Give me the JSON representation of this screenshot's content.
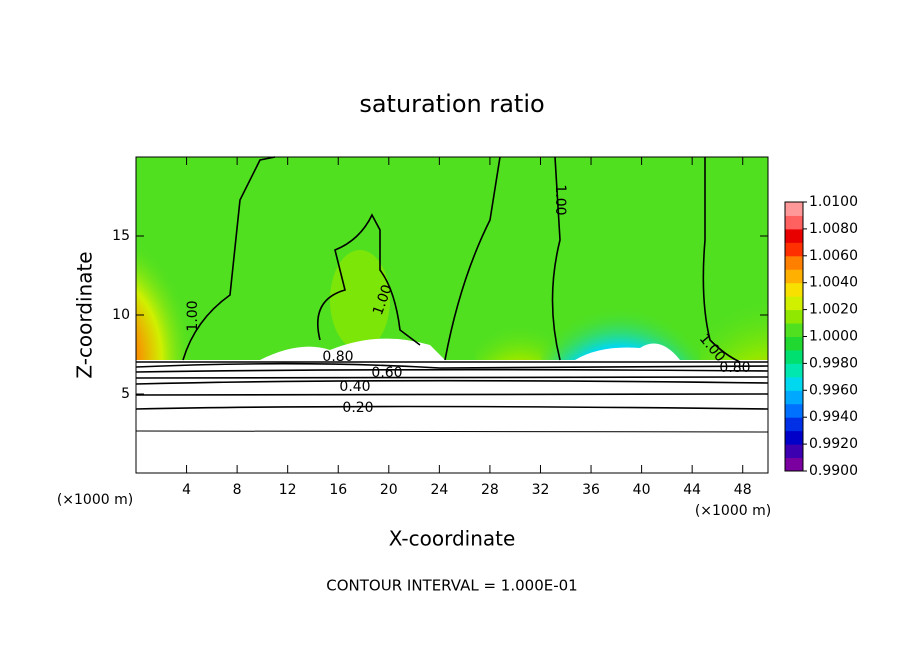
{
  "chart_data": {
    "type": "contour",
    "title": "saturation ratio",
    "x_label": "X-coordinate",
    "y_label": "Z-coordinate",
    "x_unit_left": "(×1000 m)",
    "x_unit_right": "(×1000 m)",
    "footnote": "CONTOUR INTERVAL = 1.000E-01",
    "xlim": [
      0,
      50
    ],
    "xticks": [
      4,
      8,
      12,
      16,
      20,
      24,
      28,
      32,
      36,
      40,
      44,
      48
    ],
    "ylim": [
      0,
      20
    ],
    "yticks": [
      5,
      10,
      15
    ],
    "contour_labels": [
      "1.00",
      "1.00",
      "1.00",
      "1.00",
      "0.80",
      "0.80",
      "0.60",
      "0.40",
      "0.20"
    ],
    "colorbar": {
      "lim": [
        0.99,
        1.01
      ],
      "ticks": [
        {
          "value": 0.99,
          "label": "0.9900"
        },
        {
          "value": 0.992,
          "label": "0.9920"
        },
        {
          "value": 0.994,
          "label": "0.9940"
        },
        {
          "value": 0.996,
          "label": "0.9960"
        },
        {
          "value": 0.998,
          "label": "0.9980"
        },
        {
          "value": 1.0,
          "label": "1.0000"
        },
        {
          "value": 1.002,
          "label": "1.0020"
        },
        {
          "value": 1.004,
          "label": "1.0040"
        },
        {
          "value": 1.006,
          "label": "1.0060"
        },
        {
          "value": 1.008,
          "label": "1.0080"
        },
        {
          "value": 1.01,
          "label": "1.0100"
        }
      ],
      "colors": [
        "#7a00a0",
        "#3c00b0",
        "#0000c8",
        "#0030e6",
        "#0070ff",
        "#00a8ff",
        "#00d8f0",
        "#00e8b0",
        "#00e070",
        "#20d830",
        "#50e020",
        "#90e800",
        "#d0f000",
        "#f8e000",
        "#ffb000",
        "#ff8000",
        "#ff3000",
        "#e80000",
        "#ff6060",
        "#ff9898"
      ]
    }
  }
}
